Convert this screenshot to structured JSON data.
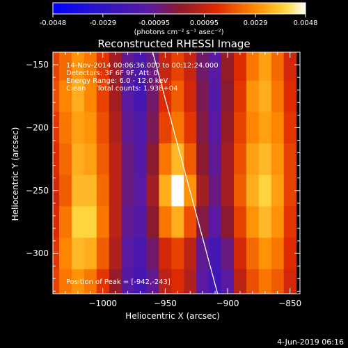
{
  "colorbar": {
    "tick_labels": [
      "-0.0048",
      "-0.0029",
      "-0.00095",
      "0.00095",
      "0.0029",
      "0.0048"
    ],
    "ticks": [
      -0.0048,
      -0.0029,
      -0.00095,
      0.00095,
      0.0029,
      0.0048
    ],
    "range": [
      -0.0048,
      0.0048
    ],
    "units_label": "(photons cm⁻² s⁻¹ asec⁻²)"
  },
  "annotations": {
    "line1": "14-Nov-2014 00:06:36.000 to 00:12:24.000",
    "line2": "Detectors: 3F 6F 9F, Att: 0",
    "line3": "Energy Range: 6.0 - 12.0 keV",
    "line4": "Clean     Total counts: 1.93E+04",
    "peak": "Position of Peak = [-942,-243]"
  },
  "footer_date": "4-Jun-2019 06:16",
  "chart_data": {
    "type": "heatmap",
    "title": "Reconstructed RHESSI Image",
    "xlabel": "Heliocentric X (arcsec)",
    "ylabel": "Heliocentric Y (arcsec)",
    "xlim": [
      -1040,
      -842
    ],
    "ylim": [
      -332,
      -140
    ],
    "x_ticks": [
      -1000,
      -950,
      -900,
      -850
    ],
    "y_ticks": [
      -150,
      -200,
      -250,
      -300
    ],
    "x_tick_labels": [
      "−1000",
      "−950",
      "−900",
      "−850"
    ],
    "y_tick_labels": [
      "−150",
      "−200",
      "−250",
      "−300"
    ],
    "colormap": "black-blue-purple-red-orange-yellow-white",
    "peak_position": [
      -942,
      -243
    ],
    "limb_line": [
      [
        -960,
        -140
      ],
      [
        -908,
        -332
      ]
    ],
    "columns": [
      -1040,
      -1030,
      -1020,
      -1010,
      -1000,
      -990,
      -980,
      -970,
      -960,
      -950,
      -940,
      -930,
      -920,
      -910,
      -900,
      -890,
      -880,
      -870,
      -860,
      -850
    ],
    "rows": [
      -150,
      -175,
      -200,
      -225,
      -250,
      -275,
      -300,
      -325
    ],
    "values": [
      [
        0.0018,
        0.0024,
        0.003,
        0.0026,
        0.0016,
        0.0004,
        -0.001,
        -0.0018,
        -0.0008,
        0.001,
        0.0018,
        0.001,
        -0.0006,
        -0.0012,
        0.0002,
        0.0014,
        0.0026,
        0.0032,
        0.0024,
        0.0012
      ],
      [
        0.002,
        0.0028,
        0.0034,
        0.0028,
        0.0018,
        0.0004,
        -0.0012,
        -0.002,
        -0.0006,
        0.0014,
        0.0022,
        0.0012,
        -0.0004,
        -0.0014,
        0.0,
        0.0016,
        0.003,
        0.0034,
        0.0026,
        0.0014
      ],
      [
        0.0016,
        0.0026,
        0.0032,
        0.003,
        0.002,
        0.0006,
        -0.001,
        -0.0016,
        -0.0004,
        0.0018,
        0.0026,
        0.0016,
        -0.0002,
        -0.0012,
        0.0002,
        0.0018,
        0.0028,
        0.0032,
        0.0028,
        0.0016
      ],
      [
        0.0014,
        0.0024,
        0.0034,
        0.0032,
        0.0022,
        0.0008,
        -0.0008,
        -0.0014,
        0.0,
        0.0026,
        0.0036,
        0.0022,
        0.0,
        -0.001,
        0.0004,
        0.002,
        0.0032,
        0.0036,
        0.003,
        0.0018
      ],
      [
        0.0012,
        0.0022,
        0.0036,
        0.0036,
        0.0024,
        0.0008,
        -0.0008,
        -0.0012,
        0.0004,
        0.0034,
        0.0048,
        0.003,
        0.0004,
        -0.0008,
        0.0004,
        0.0022,
        0.0034,
        0.004,
        0.0032,
        0.0018
      ],
      [
        0.0014,
        0.0026,
        0.004,
        0.004,
        0.0026,
        0.0008,
        -0.001,
        -0.0014,
        0.0,
        0.0026,
        0.0034,
        0.002,
        -0.0002,
        -0.0012,
        0.0,
        0.0018,
        0.003,
        0.0036,
        0.003,
        0.0016
      ],
      [
        0.0016,
        0.0028,
        0.0036,
        0.0034,
        0.0022,
        0.0006,
        -0.0012,
        -0.0018,
        -0.0006,
        0.0012,
        0.0018,
        0.0008,
        -0.001,
        -0.002,
        -0.0008,
        0.0012,
        0.0024,
        0.003,
        0.0026,
        0.0014
      ],
      [
        0.0018,
        0.0026,
        0.003,
        0.0026,
        0.0016,
        0.0002,
        -0.0014,
        -0.002,
        -0.001,
        0.0008,
        0.0014,
        0.0006,
        -0.0012,
        -0.0022,
        -0.0012,
        0.0008,
        0.002,
        0.0026,
        0.0022,
        0.0012
      ]
    ]
  }
}
